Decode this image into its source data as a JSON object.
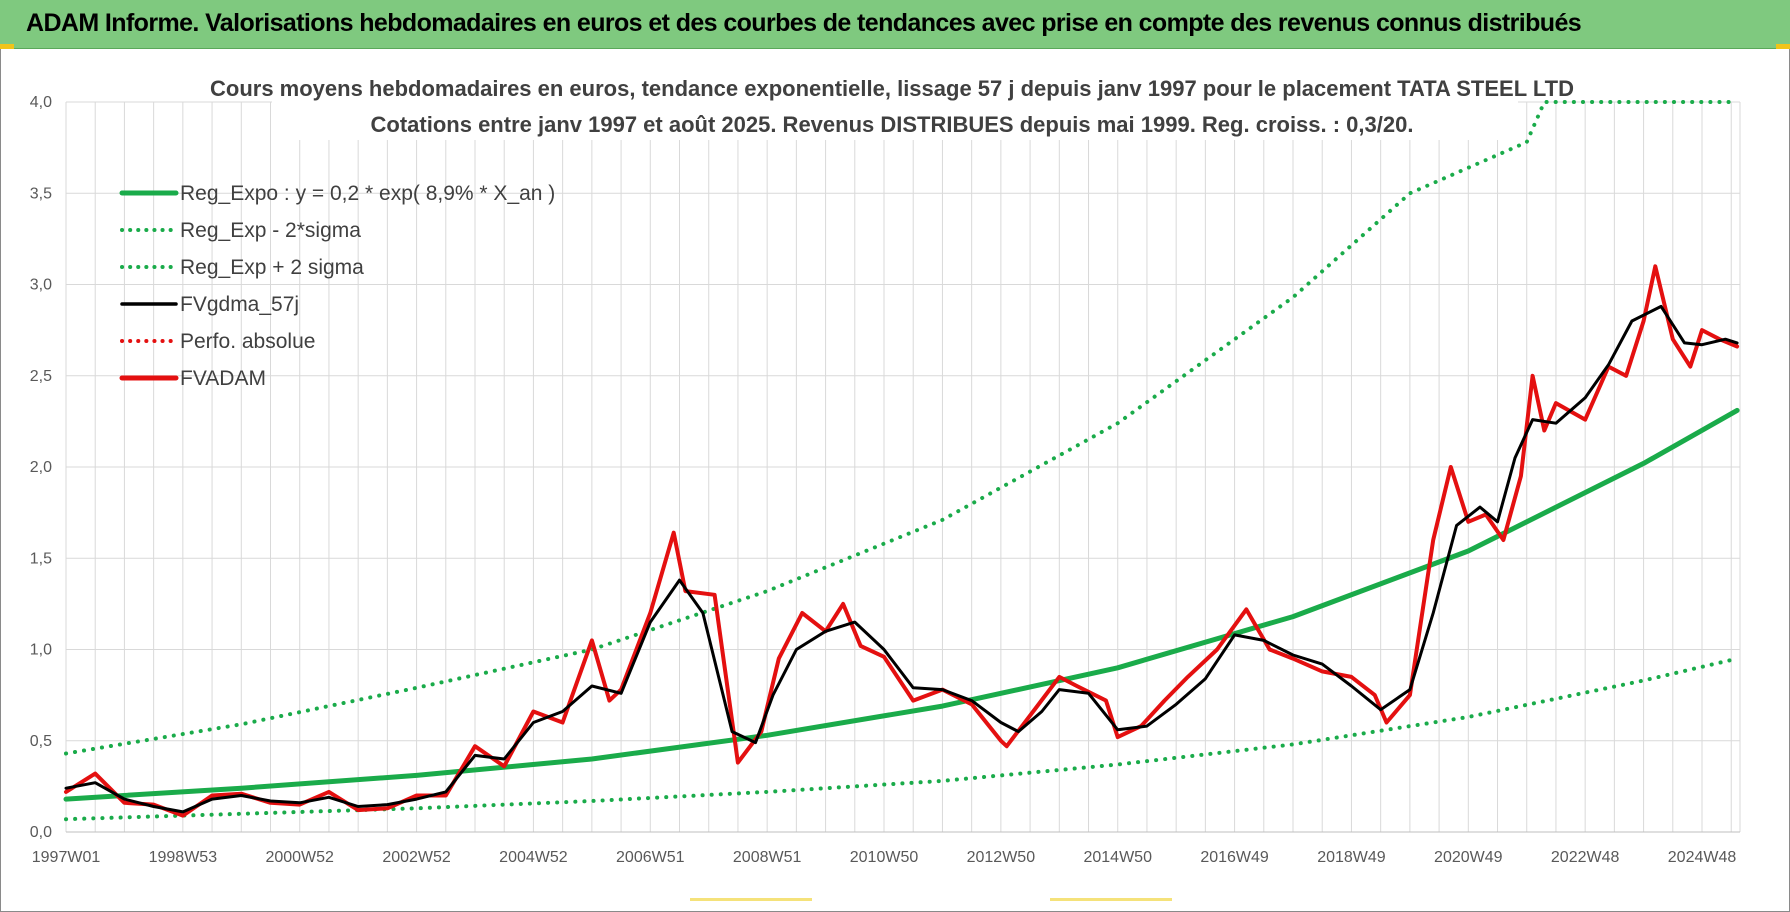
{
  "header": {
    "title": "ADAM Informe. Valorisations hebdomadaires en euros et des courbes de tendances avec prise en compte des revenus connus distribués"
  },
  "colors": {
    "header_bg": "#7fc97f",
    "trend": "#1aab4a",
    "fv": "#000000",
    "adam": "#e41010"
  },
  "chart_data": {
    "type": "line",
    "title": "Cours moyens hebdomadaires en euros, tendance exponentielle, lissage 57 j depuis janv 1997  pour le placement TATA STEEL LTD",
    "subtitle": "Cotations entre janv 1997 et août 2025. Revenus DISTRIBUES depuis mai 1999. Reg. croiss. : 0,3/20.",
    "ylim": [
      0,
      4
    ],
    "yticks": [
      "0,0",
      "0,5",
      "1,0",
      "1,5",
      "2,0",
      "2,5",
      "3,0",
      "3,5",
      "4,0"
    ],
    "xlim": [
      1997.0,
      2025.65
    ],
    "xticks": [
      {
        "x": 1997.0,
        "label": "1997W01"
      },
      {
        "x": 1999.0,
        "label": "1998W53"
      },
      {
        "x": 2001.0,
        "label": "2000W52"
      },
      {
        "x": 2003.0,
        "label": "2002W52"
      },
      {
        "x": 2005.0,
        "label": "2004W52"
      },
      {
        "x": 2007.0,
        "label": "2006W51"
      },
      {
        "x": 2009.0,
        "label": "2008W51"
      },
      {
        "x": 2011.0,
        "label": "2010W50"
      },
      {
        "x": 2013.0,
        "label": "2012W50"
      },
      {
        "x": 2015.0,
        "label": "2014W50"
      },
      {
        "x": 2017.0,
        "label": "2016W49"
      },
      {
        "x": 2019.0,
        "label": "2018W49"
      },
      {
        "x": 2021.0,
        "label": "2020W49"
      },
      {
        "x": 2023.0,
        "label": "2022W48"
      },
      {
        "x": 2025.0,
        "label": "2024W48"
      }
    ],
    "grid": true,
    "legend_position": "top-left",
    "series": [
      {
        "name": "Reg_Expo : y = 0,2 * exp( 8,9% *  X_an )",
        "color": "#1aab4a",
        "style": "solid",
        "width": 5,
        "x": [
          1997,
          2000,
          2003,
          2006,
          2009,
          2012,
          2015,
          2018,
          2021,
          2024,
          2025.6
        ],
        "values": [
          0.18,
          0.24,
          0.31,
          0.4,
          0.53,
          0.69,
          0.9,
          1.18,
          1.54,
          2.02,
          2.31
        ]
      },
      {
        "name": "Reg_Exp - 2*sigma",
        "color": "#1aab4a",
        "style": "dotted",
        "width": 4,
        "x": [
          1997,
          2000,
          2003,
          2006,
          2009,
          2012,
          2015,
          2018,
          2021,
          2024,
          2025.6
        ],
        "values": [
          0.07,
          0.1,
          0.13,
          0.17,
          0.22,
          0.28,
          0.37,
          0.48,
          0.63,
          0.83,
          0.95
        ]
      },
      {
        "name": "Reg_Exp + 2 sigma",
        "color": "#1aab4a",
        "style": "dotted",
        "width": 4,
        "x": [
          1997,
          2000,
          2003,
          2006,
          2009,
          2012,
          2015,
          2018,
          2020,
          2022,
          2022.3,
          2025.6
        ],
        "values": [
          0.43,
          0.59,
          0.79,
          1.0,
          1.32,
          1.71,
          2.24,
          2.93,
          3.5,
          3.78,
          4.0,
          4.0
        ]
      },
      {
        "name": "FVgdma_57j",
        "color": "#000000",
        "style": "solid",
        "width": 3,
        "x": [
          1997,
          1997.5,
          1998,
          1998.5,
          1999,
          1999.5,
          2000,
          2000.5,
          2001,
          2001.5,
          2002,
          2002.5,
          2003,
          2003.5,
          2004,
          2004.5,
          2005,
          2005.5,
          2006,
          2006.5,
          2007,
          2007.5,
          2007.9,
          2008.4,
          2008.8,
          2009.1,
          2009.5,
          2010,
          2010.5,
          2011,
          2011.5,
          2012,
          2012.5,
          2013,
          2013.3,
          2013.7,
          2014,
          2014.5,
          2015,
          2015.5,
          2016,
          2016.5,
          2017,
          2017.5,
          2018,
          2018.5,
          2019,
          2019.5,
          2020,
          2020.4,
          2020.8,
          2021.2,
          2021.5,
          2021.8,
          2022.1,
          2022.5,
          2023,
          2023.4,
          2023.8,
          2024.3,
          2024.7,
          2025,
          2025.4,
          2025.6
        ],
        "values": [
          0.24,
          0.27,
          0.18,
          0.14,
          0.11,
          0.18,
          0.2,
          0.17,
          0.16,
          0.19,
          0.14,
          0.15,
          0.18,
          0.22,
          0.42,
          0.4,
          0.6,
          0.66,
          0.8,
          0.76,
          1.15,
          1.38,
          1.2,
          0.55,
          0.49,
          0.75,
          1.0,
          1.1,
          1.15,
          1.0,
          0.79,
          0.78,
          0.72,
          0.6,
          0.55,
          0.66,
          0.78,
          0.76,
          0.56,
          0.58,
          0.7,
          0.84,
          1.08,
          1.05,
          0.97,
          0.92,
          0.8,
          0.67,
          0.78,
          1.2,
          1.68,
          1.78,
          1.7,
          2.05,
          2.26,
          2.24,
          2.38,
          2.56,
          2.8,
          2.88,
          2.68,
          2.67,
          2.7,
          2.68
        ]
      },
      {
        "name": "Perfo. absolue",
        "color": "#e41010",
        "style": "dotted",
        "width": 3,
        "x": [],
        "values": []
      },
      {
        "name": "FVADAM",
        "color": "#e41010",
        "style": "solid",
        "width": 4,
        "x": [
          1997,
          1997.5,
          1998,
          1998.5,
          1999,
          1999.5,
          2000,
          2000.5,
          2001,
          2001.5,
          2002,
          2002.5,
          2003,
          2003.5,
          2004,
          2004.5,
          2005,
          2005.5,
          2006,
          2006.3,
          2006.5,
          2007,
          2007.4,
          2007.6,
          2008.1,
          2008.5,
          2008.9,
          2009.2,
          2009.6,
          2010,
          2010.3,
          2010.6,
          2011,
          2011.5,
          2012,
          2012.5,
          2013,
          2013.1,
          2013.6,
          2014,
          2014.3,
          2014.8,
          2015,
          2015.4,
          2015.8,
          2016.2,
          2016.7,
          2017.2,
          2017.6,
          2018,
          2018.5,
          2019,
          2019.4,
          2019.6,
          2020,
          2020.4,
          2020.7,
          2021,
          2021.3,
          2021.6,
          2021.9,
          2022.1,
          2022.3,
          2022.5,
          2023,
          2023.4,
          2023.7,
          2024,
          2024.2,
          2024.5,
          2024.8,
          2025,
          2025.3,
          2025.6
        ],
        "values": [
          0.22,
          0.32,
          0.16,
          0.15,
          0.09,
          0.2,
          0.21,
          0.16,
          0.15,
          0.22,
          0.12,
          0.13,
          0.2,
          0.2,
          0.47,
          0.36,
          0.66,
          0.6,
          1.05,
          0.72,
          0.78,
          1.2,
          1.64,
          1.32,
          1.3,
          0.38,
          0.55,
          0.95,
          1.2,
          1.1,
          1.25,
          1.02,
          0.96,
          0.72,
          0.78,
          0.7,
          0.5,
          0.47,
          0.68,
          0.85,
          0.8,
          0.72,
          0.52,
          0.58,
          0.72,
          0.85,
          1.0,
          1.22,
          1.0,
          0.95,
          0.88,
          0.85,
          0.75,
          0.6,
          0.75,
          1.6,
          2.0,
          1.7,
          1.74,
          1.6,
          1.95,
          2.5,
          2.2,
          2.35,
          2.26,
          2.55,
          2.5,
          2.8,
          3.1,
          2.7,
          2.55,
          2.75,
          2.7,
          2.66
        ]
      }
    ]
  }
}
